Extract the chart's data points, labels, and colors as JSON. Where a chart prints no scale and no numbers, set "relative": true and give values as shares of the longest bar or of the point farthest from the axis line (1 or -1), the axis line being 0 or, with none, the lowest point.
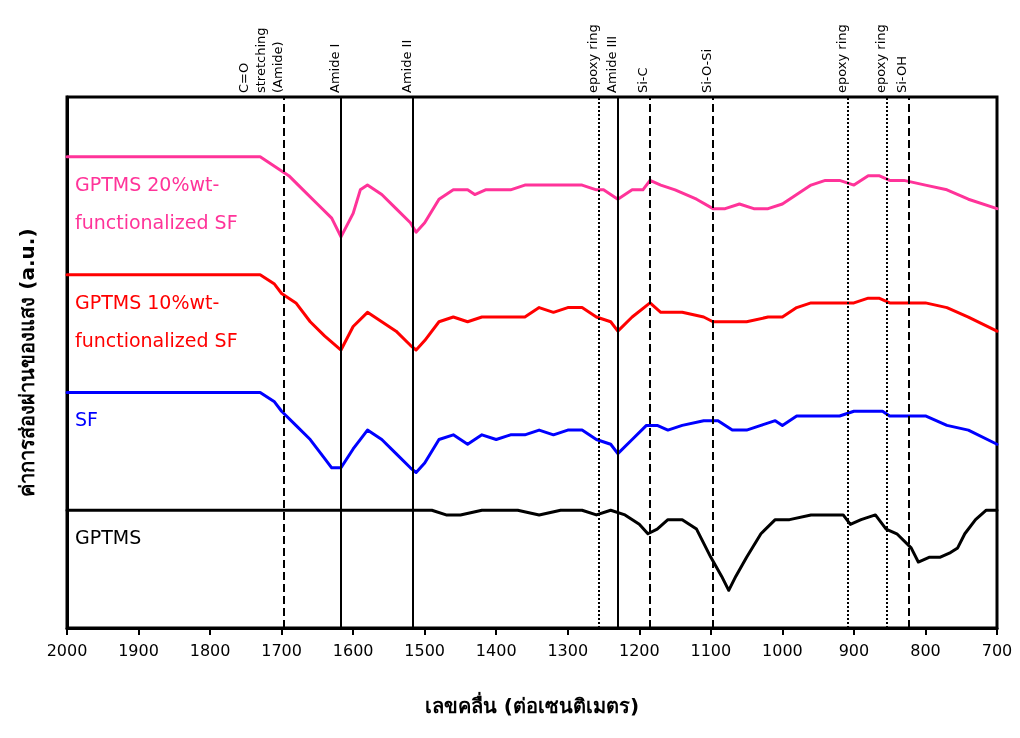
{
  "chart_data": {
    "type": "line",
    "xlabel": "เลขคลื่น (ต่อเซนติเมตร)",
    "ylabel": "ค่าการส่องผ่านของแสง (a.u.)",
    "relative": true,
    "xlim": [
      2000,
      700
    ],
    "xticks": [
      2000,
      1900,
      1800,
      1700,
      1600,
      1500,
      1400,
      1300,
      1200,
      1100,
      1000,
      900,
      800,
      700
    ],
    "legend": false,
    "grid": false,
    "marker": "none",
    "series": [
      {
        "name": "GPTMS 20%wt-functionalized SF",
        "color": "#ff3399",
        "x": [
          2000,
          1730,
          1720,
          1700,
          1690,
          1670,
          1650,
          1630,
          1617,
          1600,
          1590,
          1580,
          1560,
          1540,
          1520,
          1512,
          1500,
          1480,
          1460,
          1440,
          1430,
          1415,
          1400,
          1380,
          1360,
          1340,
          1320,
          1300,
          1280,
          1260,
          1250,
          1230,
          1210,
          1195,
          1185,
          1170,
          1150,
          1120,
          1097,
          1080,
          1060,
          1040,
          1020,
          1000,
          980,
          960,
          940,
          920,
          900,
          880,
          865,
          850,
          830,
          800,
          770,
          740,
          700
        ],
        "values": [
          1.0,
          1.0,
          0.99,
          0.97,
          0.96,
          0.93,
          0.9,
          0.87,
          0.83,
          0.88,
          0.93,
          0.94,
          0.92,
          0.89,
          0.86,
          0.84,
          0.86,
          0.91,
          0.93,
          0.93,
          0.92,
          0.93,
          0.93,
          0.93,
          0.94,
          0.94,
          0.94,
          0.94,
          0.94,
          0.93,
          0.93,
          0.91,
          0.93,
          0.93,
          0.95,
          0.94,
          0.93,
          0.91,
          0.89,
          0.89,
          0.9,
          0.89,
          0.89,
          0.9,
          0.92,
          0.94,
          0.95,
          0.95,
          0.94,
          0.96,
          0.96,
          0.95,
          0.95,
          0.94,
          0.93,
          0.91,
          0.89
        ]
      },
      {
        "name": "GPTMS 10%wt-functionalized SF",
        "color": "#ff0000",
        "x": [
          2000,
          1730,
          1710,
          1700,
          1680,
          1660,
          1640,
          1617,
          1600,
          1580,
          1560,
          1540,
          1520,
          1512,
          1500,
          1480,
          1460,
          1440,
          1420,
          1400,
          1380,
          1360,
          1340,
          1320,
          1300,
          1280,
          1260,
          1240,
          1230,
          1210,
          1185,
          1170,
          1140,
          1110,
          1097,
          1070,
          1050,
          1020,
          1000,
          980,
          960,
          940,
          900,
          880,
          865,
          850,
          830,
          800,
          770,
          740,
          700
        ],
        "values": [
          0.75,
          0.75,
          0.73,
          0.71,
          0.69,
          0.65,
          0.62,
          0.59,
          0.64,
          0.67,
          0.65,
          0.63,
          0.6,
          0.59,
          0.61,
          0.65,
          0.66,
          0.65,
          0.66,
          0.66,
          0.66,
          0.66,
          0.68,
          0.67,
          0.68,
          0.68,
          0.66,
          0.65,
          0.63,
          0.66,
          0.69,
          0.67,
          0.67,
          0.66,
          0.65,
          0.65,
          0.65,
          0.66,
          0.66,
          0.68,
          0.69,
          0.69,
          0.69,
          0.7,
          0.7,
          0.69,
          0.69,
          0.69,
          0.68,
          0.66,
          0.63
        ]
      },
      {
        "name": "SF",
        "color": "#0000ff",
        "x": [
          2000,
          1730,
          1710,
          1700,
          1680,
          1660,
          1640,
          1630,
          1617,
          1600,
          1580,
          1560,
          1540,
          1520,
          1512,
          1500,
          1480,
          1460,
          1440,
          1420,
          1400,
          1380,
          1360,
          1340,
          1320,
          1300,
          1280,
          1260,
          1240,
          1230,
          1210,
          1190,
          1175,
          1160,
          1140,
          1110,
          1090,
          1070,
          1050,
          1030,
          1010,
          1000,
          980,
          960,
          920,
          900,
          880,
          860,
          850,
          830,
          800,
          770,
          740,
          700
        ],
        "values": [
          0.5,
          0.5,
          0.48,
          0.46,
          0.43,
          0.4,
          0.36,
          0.34,
          0.34,
          0.38,
          0.42,
          0.4,
          0.37,
          0.34,
          0.33,
          0.35,
          0.4,
          0.41,
          0.39,
          0.41,
          0.4,
          0.41,
          0.41,
          0.42,
          0.41,
          0.42,
          0.42,
          0.4,
          0.39,
          0.37,
          0.4,
          0.43,
          0.43,
          0.42,
          0.43,
          0.44,
          0.44,
          0.42,
          0.42,
          0.43,
          0.44,
          0.43,
          0.45,
          0.45,
          0.45,
          0.46,
          0.46,
          0.46,
          0.45,
          0.45,
          0.45,
          0.43,
          0.42,
          0.39
        ]
      },
      {
        "name": "GPTMS",
        "color": "#000000",
        "x": [
          2000,
          1520,
          1490,
          1470,
          1450,
          1420,
          1400,
          1370,
          1340,
          1310,
          1280,
          1260,
          1240,
          1220,
          1200,
          1188,
          1175,
          1160,
          1140,
          1120,
          1100,
          1085,
          1075,
          1065,
          1050,
          1030,
          1010,
          990,
          960,
          930,
          915,
          905,
          890,
          870,
          855,
          840,
          820,
          810,
          795,
          780,
          765,
          755,
          745,
          730,
          715,
          700
        ],
        "values": [
          0.25,
          0.25,
          0.25,
          0.24,
          0.24,
          0.25,
          0.25,
          0.25,
          0.24,
          0.25,
          0.25,
          0.24,
          0.25,
          0.24,
          0.22,
          0.2,
          0.21,
          0.23,
          0.23,
          0.21,
          0.15,
          0.11,
          0.08,
          0.11,
          0.15,
          0.2,
          0.23,
          0.23,
          0.24,
          0.24,
          0.24,
          0.22,
          0.23,
          0.24,
          0.21,
          0.2,
          0.17,
          0.14,
          0.15,
          0.15,
          0.16,
          0.17,
          0.2,
          0.23,
          0.25,
          0.25
        ]
      }
    ],
    "ref_lines": [
      {
        "axis": "x",
        "value": 1697,
        "label": "C=O\nstretching\n(Amide)",
        "line_style": "dashed"
      },
      {
        "axis": "x",
        "value": 1617,
        "label": "Amide I",
        "line_style": "solid"
      },
      {
        "axis": "x",
        "value": 1516,
        "label": "Amide II",
        "line_style": "solid"
      },
      {
        "axis": "x",
        "value": 1256,
        "label": "epoxy ring",
        "line_style": "dotted"
      },
      {
        "axis": "x",
        "value": 1230,
        "label": "Amide III",
        "line_style": "solid"
      },
      {
        "axis": "x",
        "value": 1186,
        "label": "Si-C",
        "line_style": "dashed"
      },
      {
        "axis": "x",
        "value": 1097,
        "label": "Si-O-Si",
        "line_style": "dashed"
      },
      {
        "axis": "x",
        "value": 908,
        "label": "epoxy ring",
        "line_style": "dotted"
      },
      {
        "axis": "x",
        "value": 854,
        "label": "epoxy ring",
        "line_style": "dotted"
      },
      {
        "axis": "x",
        "value": 824,
        "label": "Si-OH",
        "line_style": "dashed"
      }
    ]
  }
}
